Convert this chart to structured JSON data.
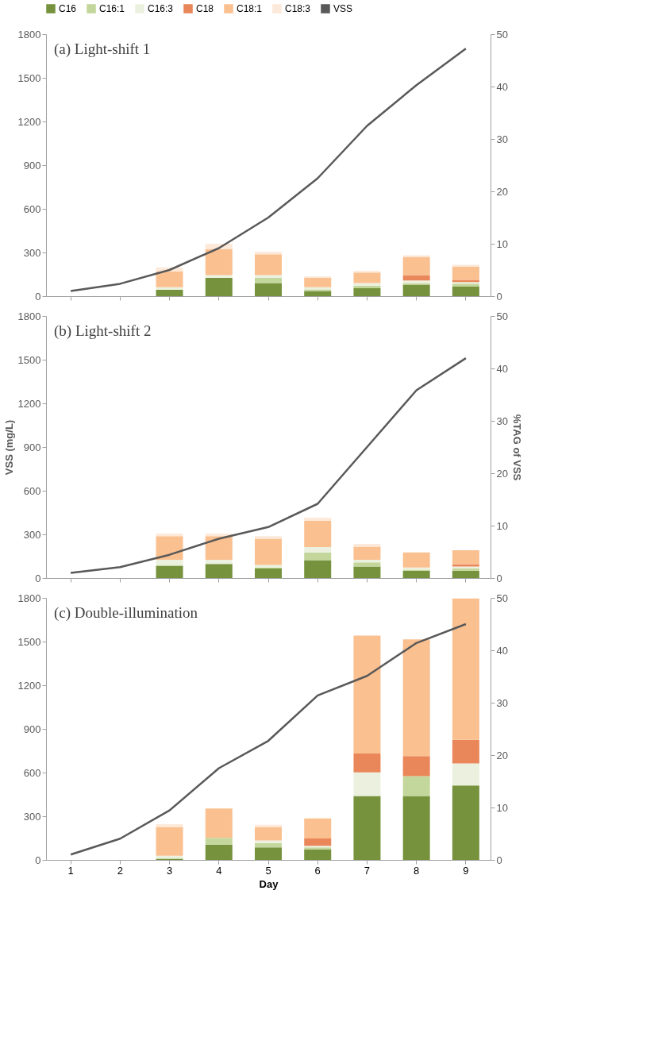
{
  "chart_data": [
    {
      "type": "bar",
      "title": "(a) Light-shift 1",
      "categories": [
        "1",
        "2",
        "3",
        "4",
        "5",
        "6",
        "7",
        "8",
        "9"
      ],
      "stacked": true,
      "legend": "top",
      "tick_labels": "y",
      "grid": false,
      "ylim": [
        0,
        1800
      ],
      "yticks": [
        0,
        300,
        600,
        900,
        1200,
        1500,
        1800
      ],
      "y2lim": [
        0,
        50
      ],
      "y2ticks": [
        0,
        10,
        20,
        30,
        40,
        50
      ],
      "series": [
        {
          "name": "C16",
          "color": "#76923c",
          "axis": "y2",
          "values": [
            0,
            0,
            1.2,
            3.5,
            2.5,
            1.0,
            1.5,
            2.2,
            1.8
          ]
        },
        {
          "name": "C16:1",
          "color": "#c3d69b",
          "axis": "y2",
          "values": [
            0,
            0,
            0,
            0,
            1.0,
            0.3,
            0.5,
            0.3,
            0.6
          ]
        },
        {
          "name": "C16:3",
          "color": "#ebf1de",
          "axis": "y2",
          "values": [
            0,
            0,
            0.5,
            0.5,
            0.5,
            0.4,
            0.5,
            0.5,
            0.3
          ]
        },
        {
          "name": "C18",
          "color": "#e9875a",
          "axis": "y2",
          "values": [
            0,
            0,
            0,
            0,
            0,
            0,
            0,
            1.0,
            0.4
          ]
        },
        {
          "name": "C18:1",
          "color": "#fac090",
          "axis": "y2",
          "values": [
            0,
            0,
            3.0,
            5.0,
            4.0,
            1.8,
            2.0,
            3.5,
            2.5
          ]
        },
        {
          "name": "C18:3",
          "color": "#fde9d9",
          "axis": "y2",
          "values": [
            0,
            0,
            0.8,
            1.0,
            0.5,
            0.3,
            0.3,
            0.3,
            0.4
          ]
        },
        {
          "name": "VSS",
          "type": "line",
          "color": "#595959",
          "axis": "y",
          "values": [
            35,
            85,
            180,
            330,
            540,
            810,
            1170,
            1450,
            1700
          ]
        }
      ]
    },
    {
      "type": "bar",
      "title": "(b) Light-shift 2",
      "ylabel": "VSS (mg/L)",
      "y2label": "%TAG of VSS",
      "categories": [
        "1",
        "2",
        "3",
        "4",
        "5",
        "6",
        "7",
        "8",
        "9"
      ],
      "stacked": true,
      "tick_labels": "y",
      "grid": false,
      "ylim": [
        0,
        1800
      ],
      "yticks": [
        0,
        300,
        600,
        900,
        1200,
        1500,
        1800
      ],
      "y2lim": [
        0,
        50
      ],
      "y2ticks": [
        0,
        10,
        20,
        30,
        40,
        50
      ],
      "series": [
        {
          "name": "C16",
          "color": "#76923c",
          "axis": "y2",
          "values": [
            0,
            0,
            2.3,
            2.7,
            1.8,
            3.4,
            2.2,
            1.4,
            1.4
          ]
        },
        {
          "name": "C16:1",
          "color": "#c3d69b",
          "axis": "y2",
          "values": [
            0,
            0,
            0.2,
            0,
            0.2,
            1.5,
            0.8,
            0.2,
            0.4
          ]
        },
        {
          "name": "C16:3",
          "color": "#ebf1de",
          "axis": "y2",
          "values": [
            0,
            0,
            1.0,
            0.8,
            0.5,
            1.0,
            0.5,
            0.4,
            0.4
          ]
        },
        {
          "name": "C18",
          "color": "#e9875a",
          "axis": "y2",
          "values": [
            0,
            0,
            0,
            0,
            0,
            0,
            0,
            0,
            0.4
          ]
        },
        {
          "name": "C18:1",
          "color": "#fac090",
          "axis": "y2",
          "values": [
            0,
            0,
            4.5,
            4.5,
            5.0,
            5.0,
            2.5,
            2.9,
            2.7
          ]
        },
        {
          "name": "C18:3",
          "color": "#fde9d9",
          "axis": "y2",
          "values": [
            0,
            0,
            0.5,
            0.5,
            0.5,
            0.6,
            0.5,
            0,
            0
          ]
        },
        {
          "name": "VSS",
          "type": "line",
          "color": "#595959",
          "axis": "y",
          "values": [
            35,
            75,
            160,
            270,
            350,
            510,
            900,
            1290,
            1510
          ]
        }
      ]
    },
    {
      "type": "bar",
      "title": "(c) Double-illumination",
      "xlabel": "Day",
      "categories": [
        "1",
        "2",
        "3",
        "4",
        "5",
        "6",
        "7",
        "8",
        "9"
      ],
      "stacked": true,
      "grid": false,
      "ylim": [
        0,
        1800
      ],
      "yticks": [
        0,
        300,
        600,
        900,
        1200,
        1500,
        1800
      ],
      "y2lim": [
        0,
        50
      ],
      "y2ticks": [
        0,
        10,
        20,
        30,
        40,
        50
      ],
      "series": [
        {
          "name": "C16",
          "color": "#76923c",
          "axis": "y2",
          "values": [
            0,
            0,
            0.2,
            2.9,
            2.4,
            2.0,
            12.2,
            12.2,
            14.2
          ]
        },
        {
          "name": "C16:1",
          "color": "#c3d69b",
          "axis": "y2",
          "values": [
            0,
            0,
            0.1,
            1.3,
            0.8,
            0.4,
            0,
            3.8,
            0
          ]
        },
        {
          "name": "C16:3",
          "color": "#ebf1de",
          "axis": "y2",
          "values": [
            0,
            0,
            0.5,
            0,
            0.5,
            0.3,
            4.5,
            0,
            4.2
          ]
        },
        {
          "name": "C18",
          "color": "#e9875a",
          "axis": "y2",
          "values": [
            0,
            0,
            0,
            0,
            0,
            1.4,
            3.6,
            3.8,
            4.5
          ]
        },
        {
          "name": "C18:1",
          "color": "#fac090",
          "axis": "y2",
          "values": [
            0,
            0,
            5.5,
            5.6,
            2.5,
            3.8,
            22.5,
            22.3,
            27.0
          ]
        },
        {
          "name": "C18:3",
          "color": "#fde9d9",
          "axis": "y2",
          "values": [
            0,
            0,
            0.5,
            0,
            0.5,
            0,
            0,
            0,
            0
          ]
        },
        {
          "name": "VSS",
          "type": "line",
          "color": "#595959",
          "axis": "y",
          "values": [
            37,
            146,
            340,
            630,
            818,
            1130,
            1264,
            1490,
            1620
          ]
        }
      ]
    }
  ]
}
